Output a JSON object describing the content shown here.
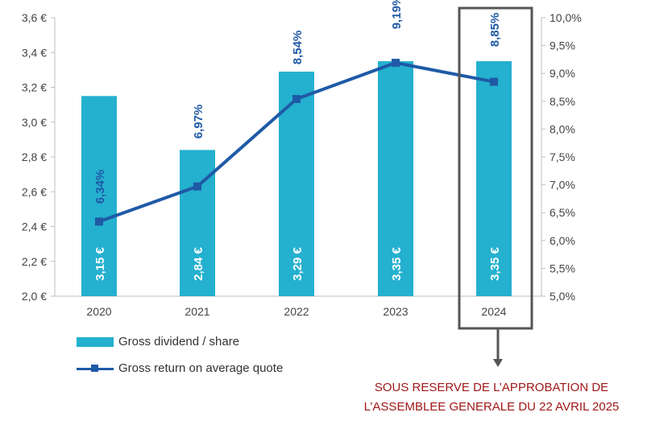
{
  "chart_data": {
    "type": "bar+line",
    "categories": [
      "2020",
      "2021",
      "2022",
      "2023",
      "2024"
    ],
    "series": [
      {
        "name": "Gross dividend / share",
        "type": "bar",
        "axis": "left",
        "values": [
          3.15,
          2.84,
          3.29,
          3.35,
          3.35
        ],
        "labels": [
          "3,15 €",
          "2,84 €",
          "3,29 €",
          "3,35 €",
          "3,35 €"
        ],
        "color": "#24b0cf"
      },
      {
        "name": "Gross return on average quote",
        "type": "line",
        "axis": "right",
        "values": [
          6.34,
          6.97,
          8.54,
          9.19,
          8.85
        ],
        "labels": [
          "6,34%",
          "6,97%",
          "8,54%",
          "9,19%",
          "8,85%"
        ],
        "color": "#1f5aa6"
      }
    ],
    "y_left": {
      "ylim": [
        2.0,
        3.6
      ],
      "ticks": [
        2.0,
        2.2,
        2.4,
        2.6,
        2.8,
        3.0,
        3.2,
        3.4,
        3.6
      ],
      "tick_labels": [
        "2,0 €",
        "2,2 €",
        "2,4 €",
        "2,6 €",
        "2,8 €",
        "3,0 €",
        "3,2 €",
        "3,4 €",
        "3,6 €"
      ]
    },
    "y_right": {
      "ylim": [
        5.0,
        10.0
      ],
      "ticks": [
        5.0,
        5.5,
        6.0,
        6.5,
        7.0,
        7.5,
        8.0,
        8.5,
        9.0,
        9.5,
        10.0
      ],
      "tick_labels": [
        "5,0%",
        "5,5%",
        "6,0%",
        "6,5%",
        "7,0%",
        "7,5%",
        "8,0%",
        "8,5%",
        "9,0%",
        "9,5%",
        "10,0%"
      ]
    },
    "highlight_category": "2024",
    "legend": "bottom-left",
    "grid": false,
    "annotation": "SOUS RESERVE DE L'APPROBATION DE L'ASSEMBLEE GENERALE DU 22 AVRIL 2025"
  },
  "legend": {
    "bar_label": "Gross dividend / share",
    "line_label": "Gross return on average quote"
  },
  "note": {
    "line1": "SOUS RESERVE DE L’APPROBATION DE",
    "line2": "L’ASSEMBLEE GENERALE DU 22 AVRIL 2025"
  },
  "colors": {
    "bar": "#24b0cf",
    "line": "#1f5aa6",
    "highlight_box": "#555555",
    "note": "#a01818"
  }
}
